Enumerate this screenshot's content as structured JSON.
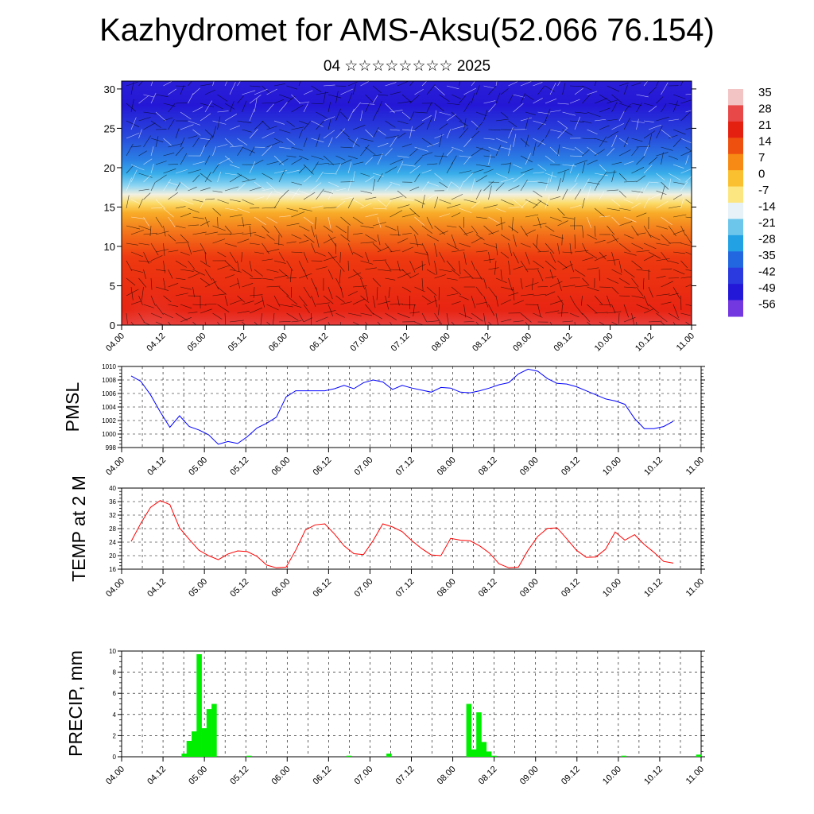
{
  "page": {
    "title": "Kazhydromet for AMS-Aksu(52.066 76.154)",
    "subtitle": "04 ☆☆☆☆☆☆☆☆ 2025"
  },
  "chart_data": [
    {
      "type": "heatmap",
      "title": "",
      "x_ticks": [
        "04.00",
        "04.12",
        "05.00",
        "05.12",
        "06.00",
        "06.12",
        "07.00",
        "07.12",
        "08.00",
        "08.12",
        "09.00",
        "09.12",
        "10.00",
        "10.12",
        "11.00"
      ],
      "ylim": [
        0,
        31
      ],
      "y_ticks": [
        0,
        5,
        10,
        15,
        20,
        25,
        30
      ],
      "colorbar": {
        "labels": [
          "35",
          "28",
          "21",
          "14",
          "7",
          "0",
          "-7",
          "-14",
          "-21",
          "-28",
          "-35",
          "-42",
          "-49",
          "-56"
        ],
        "colors": [
          "#f2c4c4",
          "#e84848",
          "#e42010",
          "#ee5010",
          "#f68a14",
          "#fac030",
          "#fce682",
          "#e6f2f8",
          "#6cc6ec",
          "#22a2e4",
          "#2266e0",
          "#2a3ade",
          "#2418d8",
          "#7438e0"
        ]
      },
      "description_of_field": "temperature vs level with wind barbs"
    },
    {
      "type": "line",
      "ylabel": "PMSL",
      "ylim": [
        998,
        1010
      ],
      "y_ticks": [
        998,
        1000,
        1002,
        1004,
        1006,
        1008,
        1010
      ],
      "x_ticks": [
        "04.00",
        "04.12",
        "05.00",
        "05.12",
        "06.00",
        "06.12",
        "07.00",
        "07.12",
        "08.00",
        "08.12",
        "09.00",
        "09.12",
        "10.00",
        "10.12",
        "11.00"
      ],
      "color": "#0000ff",
      "values": [
        1008.6,
        1007.8,
        1005.8,
        1003.3,
        1001.0,
        1002.7,
        1001.1,
        1000.6,
        999.9,
        998.5,
        998.9,
        998.6,
        999.6,
        1000.9,
        1001.6,
        1002.5,
        1005.5,
        1006.4,
        1006.4,
        1006.4,
        1006.4,
        1006.7,
        1007.2,
        1006.7,
        1007.6,
        1008.0,
        1007.7,
        1006.6,
        1007.2,
        1006.8,
        1006.5,
        1006.2,
        1006.9,
        1006.8,
        1006.2,
        1006.1,
        1006.4,
        1006.8,
        1007.3,
        1007.6,
        1008.9,
        1009.6,
        1009.3,
        1008.2,
        1007.5,
        1007.4,
        1007.0,
        1006.4,
        1005.8,
        1005.2,
        1004.9,
        1004.4,
        1002.3,
        1000.8,
        1000.8,
        1001.1,
        1001.9
      ]
    },
    {
      "type": "line",
      "ylabel": "TEMP at 2 M",
      "ylim": [
        16,
        40
      ],
      "y_ticks": [
        16,
        20,
        24,
        28,
        32,
        36,
        40
      ],
      "x_ticks": [
        "04.00",
        "04.12",
        "05.00",
        "05.12",
        "06.00",
        "06.12",
        "07.00",
        "07.12",
        "08.00",
        "08.12",
        "09.00",
        "09.12",
        "10.00",
        "10.12",
        "11.00"
      ],
      "color": "#ff0000",
      "values": [
        24.2,
        29.6,
        34.3,
        36.3,
        35.1,
        28.2,
        24.8,
        21.6,
        20.0,
        18.8,
        20.5,
        21.4,
        21.2,
        19.8,
        17.2,
        16.4,
        16.6,
        21.6,
        27.6,
        29.1,
        29.4,
        26.4,
        22.9,
        20.6,
        20.3,
        24.5,
        29.4,
        28.5,
        27.1,
        24.4,
        22.1,
        20.2,
        20.0,
        25.1,
        24.6,
        24.4,
        22.9,
        20.8,
        17.6,
        16.4,
        16.6,
        21.6,
        25.7,
        28.1,
        28.2,
        25.0,
        21.6,
        19.5,
        19.6,
        21.9,
        27.0,
        24.6,
        26.2,
        23.3,
        21.0,
        18.3,
        17.8
      ]
    },
    {
      "type": "bar",
      "ylabel": "PRECIP, mm",
      "ylim": [
        0,
        10
      ],
      "y_ticks": [
        0,
        2,
        4,
        6,
        8,
        10
      ],
      "x_ticks": [
        "04.00",
        "04.12",
        "05.00",
        "05.12",
        "06.00",
        "06.12",
        "07.00",
        "07.12",
        "08.00",
        "08.12",
        "09.00",
        "09.12",
        "10.00",
        "10.12",
        "11.00"
      ],
      "color": "#00ee00",
      "values": [
        0,
        0,
        0,
        0,
        0,
        0,
        0,
        0,
        0,
        0,
        0,
        0,
        0.3,
        1.5,
        2.4,
        9.7,
        2.7,
        4.5,
        5.0,
        0,
        0,
        0,
        0,
        0,
        0,
        0.1,
        0,
        0,
        0,
        0,
        0,
        0,
        0,
        0,
        0,
        0,
        0,
        0,
        0,
        0,
        0,
        0,
        0,
        0,
        0,
        0.1,
        0,
        0,
        0,
        0,
        0,
        0,
        0,
        0.3,
        0,
        0,
        0,
        0,
        0,
        0,
        0,
        0,
        0,
        0,
        0,
        0,
        0,
        0,
        0,
        5.0,
        0.7,
        4.2,
        1.4,
        0.5,
        0.1,
        0,
        0,
        0,
        0,
        0,
        0,
        0,
        0,
        0,
        0,
        0,
        0,
        0,
        0,
        0,
        0,
        0,
        0,
        0,
        0,
        0,
        0,
        0,
        0,
        0,
        0.1,
        0,
        0,
        0,
        0,
        0,
        0,
        0,
        0,
        0,
        0,
        0,
        0,
        0,
        0,
        0.2
      ]
    }
  ]
}
